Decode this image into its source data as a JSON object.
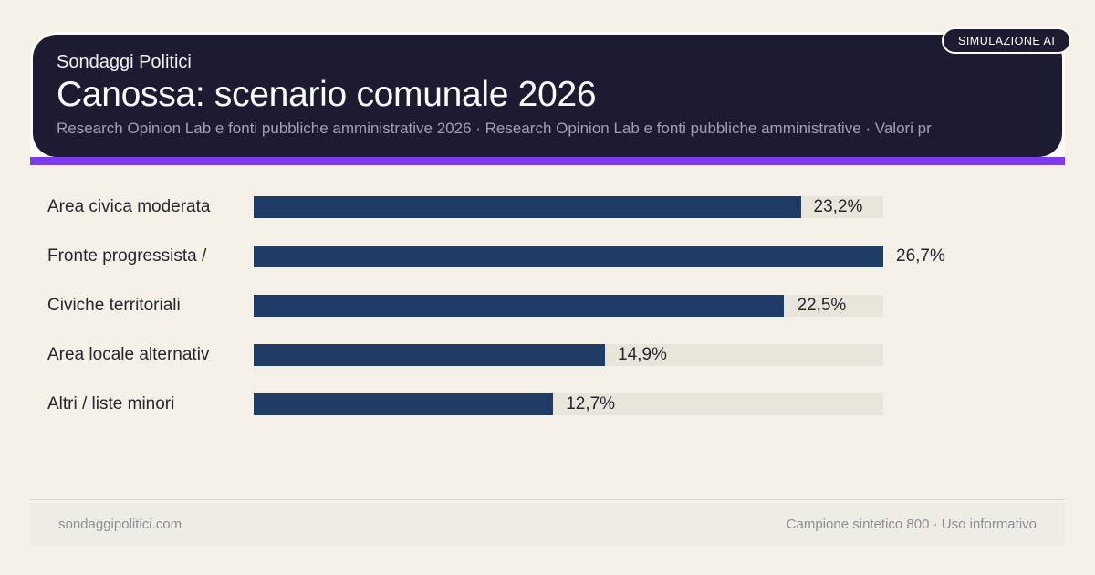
{
  "badge": {
    "label": "SIMULAZIONE AI"
  },
  "header": {
    "kicker": "Sondaggi Politici",
    "title": "Canossa: scenario comunale 2026",
    "subtitle": "Research Opinion Lab e fonti pubbliche amministrative 2026 · Research Opinion Lab e fonti pubbliche amministrative · Valori pr"
  },
  "chart_data": {
    "type": "bar",
    "orientation": "horizontal",
    "title": "Canossa: scenario comunale 2026",
    "categories": [
      "Area civica moderata",
      "Fronte progressista /",
      "Civiche territoriali",
      "Area locale alternativ",
      "Altri / liste minori"
    ],
    "values": [
      23.2,
      26.7,
      22.5,
      14.9,
      12.7
    ],
    "value_labels": [
      "23,2%",
      "26,7%",
      "22,5%",
      "14,9%",
      "12,7%"
    ],
    "unit": "%",
    "max_scale": 26.7,
    "legend": false,
    "grid": false
  },
  "footer": {
    "left": "sondaggipolitici.com",
    "right": "Campione sintetico 800 · Uso informativo"
  },
  "colors": {
    "bg": "#f5f1e8",
    "header-bg": "#1d1b31",
    "accent": "#7c3aed",
    "bar": "#1e3c66",
    "track": "#e9e5db",
    "paper": "#fcfbf7",
    "text": "#26262e",
    "subtitle": "#9fa0b4",
    "muted": "#8e8d92",
    "footer-bg": "#efece6",
    "divider": "#d9d5cc"
  }
}
